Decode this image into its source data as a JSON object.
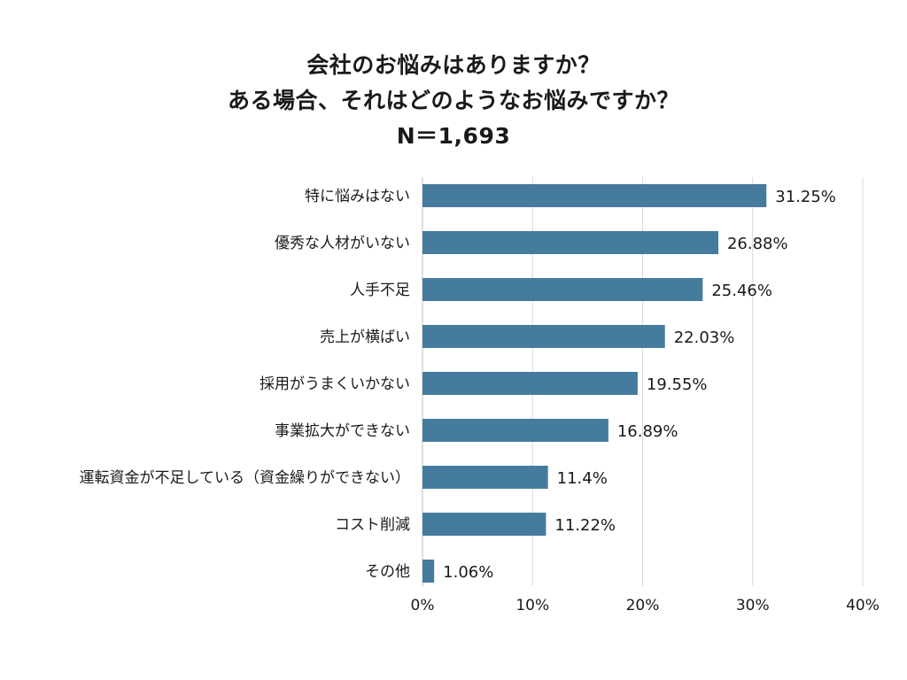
{
  "chart_data": {
    "type": "bar",
    "orientation": "horizontal",
    "title_lines": [
      "会社のお悩みはありますか？",
      "ある場合、それはどのようなお悩みですか？",
      "N＝1,693"
    ],
    "categories": [
      "特に悩みはない",
      "優秀な人材がいない",
      "人手不足",
      "売上が横ばい",
      "採用がうまくいかない",
      "事業拡大ができない",
      "運転資金が不足している（資金繰りができない）",
      "コスト削減",
      "その他"
    ],
    "values": [
      31.25,
      26.88,
      25.46,
      22.03,
      19.55,
      16.89,
      11.4,
      11.22,
      1.06
    ],
    "value_labels": [
      "31.25%",
      "26.88%",
      "25.46%",
      "22.03%",
      "19.55%",
      "16.89%",
      "11.4%",
      "11.22%",
      "1.06%"
    ],
    "xlim": [
      0,
      40
    ],
    "xticks": [
      0,
      10,
      20,
      30,
      40
    ],
    "xtick_labels": [
      "0%",
      "10%",
      "20%",
      "30%",
      "40%"
    ],
    "grid": "vertical",
    "bar_color": "#457b9d",
    "grid_color": "#d9d9d9"
  }
}
